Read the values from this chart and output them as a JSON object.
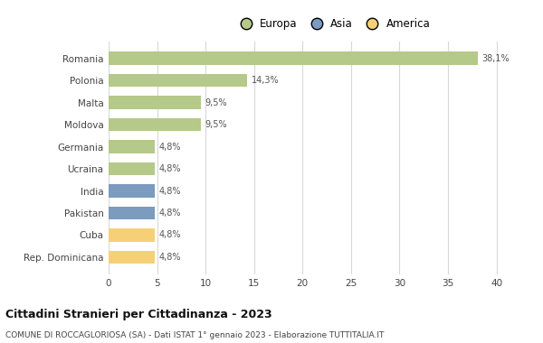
{
  "countries": [
    "Romania",
    "Polonia",
    "Malta",
    "Moldova",
    "Germania",
    "Ucraina",
    "India",
    "Pakistan",
    "Cuba",
    "Rep. Dominicana"
  ],
  "values": [
    38.1,
    14.3,
    9.5,
    9.5,
    4.8,
    4.8,
    4.8,
    4.8,
    4.8,
    4.8
  ],
  "labels": [
    "38,1%",
    "14,3%",
    "9,5%",
    "9,5%",
    "4,8%",
    "4,8%",
    "4,8%",
    "4,8%",
    "4,8%",
    "4,8%"
  ],
  "continents": [
    "Europa",
    "Europa",
    "Europa",
    "Europa",
    "Europa",
    "Europa",
    "Asia",
    "Asia",
    "America",
    "America"
  ],
  "colors": {
    "Europa": "#b5c98a",
    "Asia": "#7b9bbf",
    "America": "#f5d077"
  },
  "xlim": [
    0,
    42
  ],
  "xticks": [
    0,
    5,
    10,
    15,
    20,
    25,
    30,
    35,
    40
  ],
  "title": "Cittadini Stranieri per Cittadinanza - 2023",
  "subtitle": "COMUNE DI ROCCAGLORIOSA (SA) - Dati ISTAT 1° gennaio 2023 - Elaborazione TUTTITALIA.IT",
  "background_color": "#ffffff",
  "grid_color": "#d8d8d8",
  "bar_height": 0.6
}
